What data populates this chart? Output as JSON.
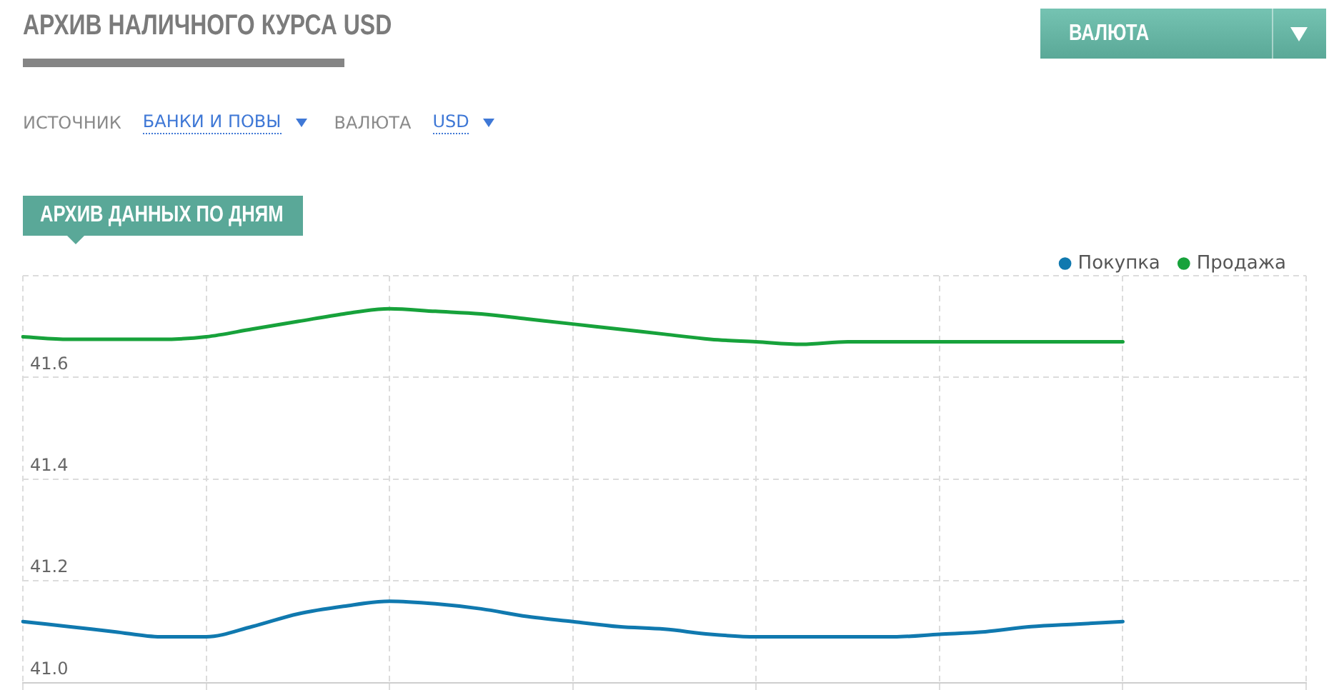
{
  "chart_data": {
    "type": "line",
    "title": "АРХИВ НАЛИЧНОГО КУРСА USD",
    "subtitle": "АРХИВ ДАННЫХ ПО ДНЯМ",
    "annotations": [
      "ВАЛЮТА",
      "ИСТОЧНИК",
      "БАНКИ И ПОВЫ",
      "ВАЛЮТА",
      "USD"
    ],
    "categories": [
      null,
      null,
      null,
      null,
      null,
      null,
      null,
      null,
      null,
      null,
      null,
      null,
      null,
      null,
      null,
      null,
      null,
      null,
      null,
      null,
      null,
      null,
      null,
      null,
      null,
      null,
      null,
      null,
      null
    ],
    "series": [
      {
        "name": "Покупка",
        "color": "#1079af",
        "values": [
          41.12,
          41.11,
          41.1,
          41.09,
          41.09,
          41.11,
          41.135,
          41.15,
          41.16,
          41.155,
          41.145,
          41.13,
          41.12,
          41.11,
          41.105,
          41.095,
          41.09,
          41.09,
          41.09,
          41.09,
          41.095,
          41.1,
          41.11,
          41.115,
          41.12,
          null,
          null,
          null,
          null
        ]
      },
      {
        "name": "Продажа",
        "color": "#17a23b",
        "values": [
          41.68,
          41.675,
          41.675,
          41.675,
          41.68,
          41.695,
          41.71,
          41.725,
          41.735,
          41.73,
          41.725,
          41.715,
          41.705,
          41.695,
          41.685,
          41.675,
          41.67,
          41.665,
          41.67,
          41.67,
          41.67,
          41.67,
          41.67,
          41.67,
          41.67,
          null,
          null,
          null,
          null
        ]
      }
    ],
    "ylim": [
      41,
      41.8
    ],
    "yticks": [
      {
        "value": 41,
        "label": "41.0"
      },
      41.2,
      41.4,
      41.6,
      {
        "value": 41.8,
        "label": null
      }
    ],
    "grid": true,
    "legend": "top right",
    "tick_labels": "y"
  }
}
